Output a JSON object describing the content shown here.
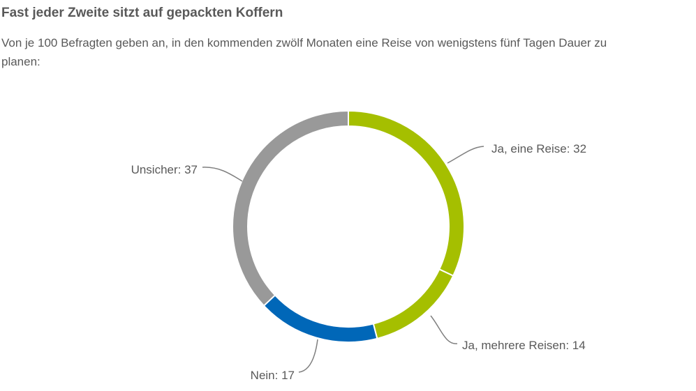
{
  "title": "Fast jeder Zweite sitzt auf gepackten Koffern",
  "subtitle": "Von je 100 Befragten geben an, in den kommenden zwölf Monaten eine Reise von wenigstens fünf Tagen Dauer zu planen:",
  "chart_data": {
    "type": "pie",
    "variant": "donut",
    "title": "Fast jeder Zweite sitzt auf gepackten Koffern",
    "subtitle": "Von je 100 Befragten geben an, in den kommenden zwölf Monaten eine Reise von wenigstens fünf Tagen Dauer zu planen:",
    "slices": [
      {
        "name": "Ja, eine Reise",
        "value": 32,
        "label": "Ja, eine Reise: 32",
        "color": "#a5bf00"
      },
      {
        "name": "Ja, mehrere Reisen",
        "value": 14,
        "label": "Ja, mehrere Reisen: 14",
        "color": "#a5bf00"
      },
      {
        "name": "Nein",
        "value": 17,
        "label": "Nein: 17",
        "color": "#0067b8"
      },
      {
        "name": "Unsicher",
        "value": 37,
        "label": "Unsicher: 37",
        "color": "#999999"
      }
    ],
    "separator_color": "#ffffff",
    "leader_color": "#7f7f7f"
  }
}
